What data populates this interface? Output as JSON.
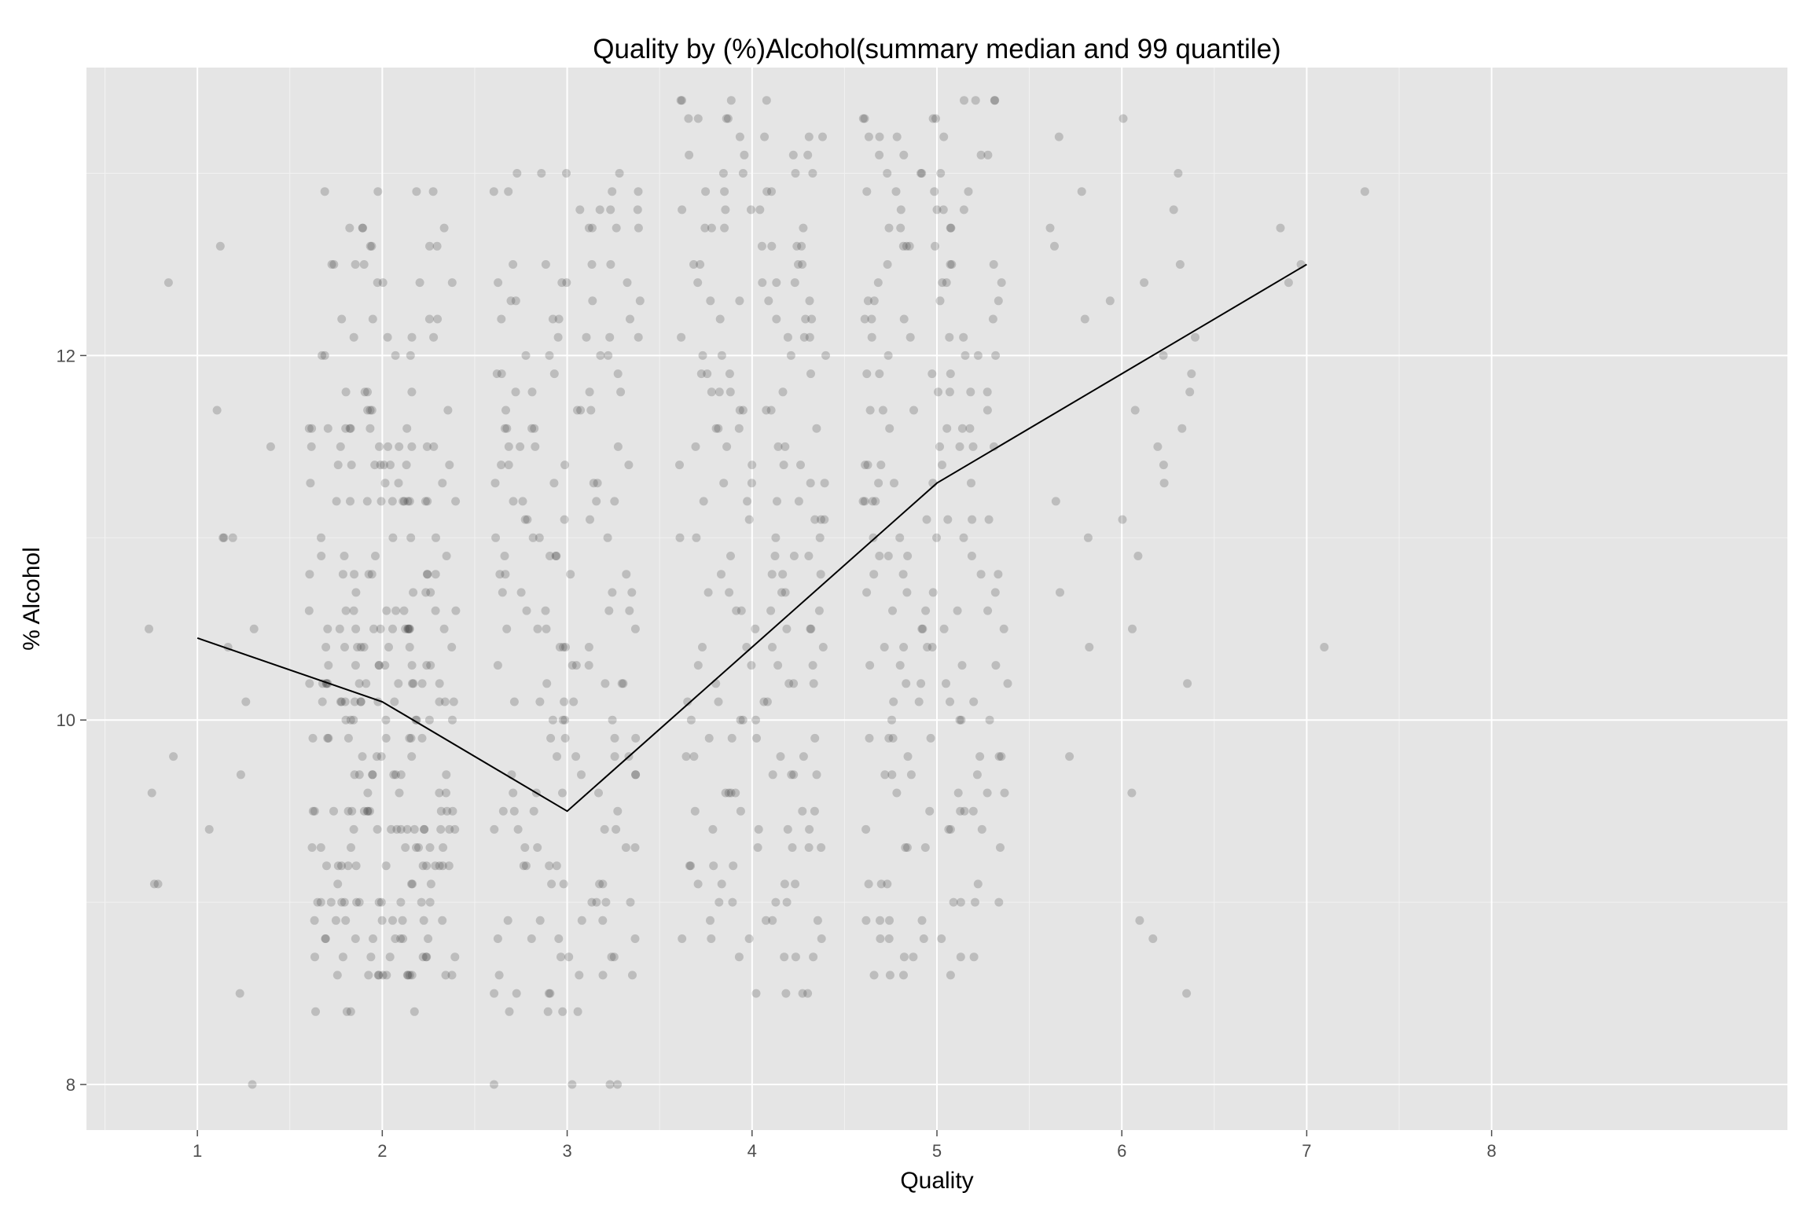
{
  "chart_data": {
    "type": "scatter",
    "title": "Quality by (%)Alcohol(summary median and 99 quantile)",
    "xlabel": "Quality",
    "ylabel": "% Alcohol",
    "xlim": [
      0.4,
      9.6
    ],
    "ylim": [
      7.75,
      13.58
    ],
    "x_ticks": [
      1,
      2,
      3,
      4,
      5,
      6,
      7,
      8
    ],
    "x_tick_labels": [
      "1",
      "2",
      "3",
      "4",
      "5",
      "6",
      "7",
      "8"
    ],
    "y_ticks": [
      8,
      10,
      12
    ],
    "y_tick_labels": [
      "8",
      "10",
      "12"
    ],
    "grid": true,
    "legend": "none",
    "colors": {
      "panel": "#e5e5e5",
      "grid": "#ffffff",
      "points": "#333333",
      "line": "#000000"
    },
    "summary_line": {
      "x": [
        1,
        2,
        3,
        4,
        5,
        6,
        7
      ],
      "y": [
        10.45,
        10.1,
        9.5,
        10.4,
        11.3,
        11.9,
        12.5
      ]
    },
    "points": [
      {
        "quality": 1,
        "alcohol": [
          12.6,
          12.4,
          11.7,
          11.5,
          11.0,
          11.0,
          10.5,
          10.5,
          10.4,
          10.1,
          11.0,
          9.8,
          9.7,
          9.6,
          9.4,
          9.1,
          9.1,
          8.5,
          8.0
        ]
      },
      {
        "quality": 2,
        "alcohol": [
          12.9,
          12.7,
          12.6,
          12.5,
          12.4,
          12.2,
          12.1,
          12.0,
          11.8,
          11.7,
          11.6,
          11.6,
          11.5,
          11.5,
          11.4,
          11.4,
          11.3,
          11.2,
          11.2,
          11.2,
          11.0,
          10.9,
          10.8,
          10.8,
          10.7,
          10.6,
          10.6,
          10.5,
          10.5,
          10.5,
          10.4,
          10.4,
          10.3,
          10.3,
          10.2,
          10.2,
          10.2,
          10.1,
          10.1,
          10.1,
          10.0,
          10.0,
          9.9,
          9.9,
          9.8,
          9.7,
          9.7,
          9.6,
          9.5,
          9.5,
          9.5,
          9.4,
          9.4,
          9.4,
          9.3,
          9.3,
          9.2,
          9.2,
          9.2,
          9.1,
          9.0,
          9.0,
          9.0,
          8.9,
          8.9,
          8.8,
          8.8,
          8.7,
          8.7,
          8.6,
          8.6,
          8.6,
          8.4
        ]
      },
      {
        "quality": 3,
        "alcohol": [
          13.0,
          12.9,
          12.8,
          12.7,
          12.5,
          12.4,
          12.3,
          12.2,
          12.1,
          12.0,
          11.9,
          11.8,
          11.7,
          11.6,
          11.5,
          11.4,
          11.3,
          11.2,
          11.1,
          11.0,
          10.9,
          10.8,
          10.7,
          10.6,
          10.5,
          10.4,
          10.3,
          10.2,
          10.1,
          10.0,
          9.9,
          9.8,
          9.7,
          9.6,
          9.5,
          9.4,
          9.3,
          9.2,
          9.1,
          9.0,
          8.9,
          8.8,
          8.7,
          8.6,
          8.5,
          8.4,
          8.0
        ]
      },
      {
        "quality": 4,
        "alcohol": [
          13.4,
          13.3,
          13.2,
          13.1,
          13.0,
          12.9,
          12.8,
          12.7,
          12.6,
          12.5,
          12.4,
          12.3,
          12.2,
          12.1,
          12.0,
          11.9,
          11.8,
          11.7,
          11.6,
          11.5,
          11.4,
          11.3,
          11.2,
          11.1,
          11.0,
          10.9,
          10.8,
          10.7,
          10.6,
          10.5,
          10.4,
          10.3,
          10.2,
          10.1,
          10.0,
          9.9,
          9.8,
          9.7,
          9.6,
          9.5,
          9.4,
          9.3,
          9.2,
          9.1,
          9.0,
          8.9,
          8.8,
          8.7,
          8.5
        ]
      },
      {
        "quality": 5,
        "alcohol": [
          13.4,
          13.3,
          13.2,
          13.1,
          13.0,
          12.9,
          12.8,
          12.7,
          12.6,
          12.5,
          12.4,
          12.3,
          12.2,
          12.1,
          12.0,
          11.9,
          11.8,
          11.7,
          11.6,
          11.5,
          11.4,
          11.3,
          11.2,
          11.1,
          11.0,
          10.9,
          10.8,
          10.7,
          10.6,
          10.5,
          10.4,
          10.3,
          10.2,
          10.1,
          10.0,
          9.9,
          9.8,
          9.7,
          9.6,
          9.5,
          9.4,
          9.3,
          9.1,
          9.0,
          8.9,
          8.8,
          8.7,
          8.6
        ]
      },
      {
        "quality": 6,
        "alcohol": [
          13.3,
          13.2,
          13.0,
          12.9,
          12.8,
          12.7,
          12.6,
          12.5,
          12.4,
          12.3,
          12.2,
          12.1,
          12.0,
          11.9,
          11.8,
          11.7,
          11.6,
          11.5,
          11.4,
          11.3,
          11.2,
          11.1,
          11.0,
          10.9,
          10.7,
          10.5,
          10.4,
          10.2,
          9.8,
          9.6,
          8.9,
          8.8,
          8.5
        ]
      },
      {
        "quality": 7,
        "alcohol": [
          12.9,
          12.7,
          12.5,
          12.4,
          10.4
        ]
      }
    ]
  }
}
